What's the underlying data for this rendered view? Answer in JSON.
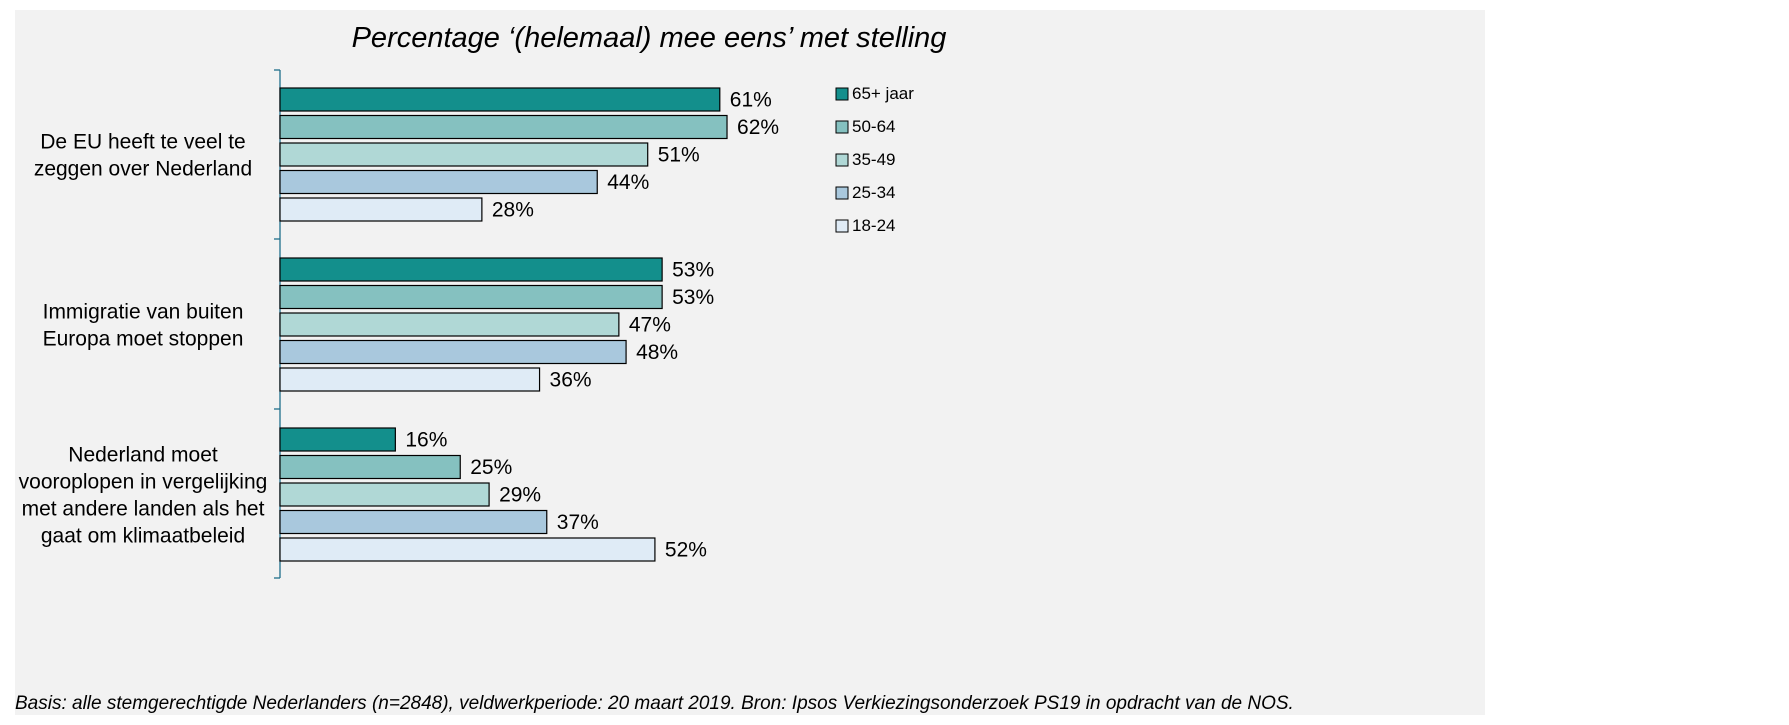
{
  "chart_data": {
    "type": "bar",
    "orientation": "horizontal",
    "title": "Percentage ‘(helemaal) mee eens’ met stelling",
    "categories": [
      [
        "De EU heeft te veel te",
        "zeggen over Nederland"
      ],
      [
        "Immigratie van buiten",
        "Europa moet stoppen"
      ],
      [
        "Nederland moet",
        "vooroplopen in vergelijking",
        "met andere landen als het",
        "gaat om klimaatbeleid"
      ]
    ],
    "series": [
      {
        "name": "65+ jaar",
        "color": "#138f8c",
        "values": [
          61,
          53,
          16
        ]
      },
      {
        "name": "50-64",
        "color": "#85c1c0",
        "values": [
          62,
          53,
          25
        ]
      },
      {
        "name": "35-49",
        "color": "#b0d8d6",
        "values": [
          51,
          47,
          29
        ]
      },
      {
        "name": "25-34",
        "color": "#a9c8dd",
        "values": [
          44,
          48,
          37
        ]
      },
      {
        "name": "18-24",
        "color": "#dfebf6",
        "values": [
          28,
          36,
          52
        ]
      }
    ],
    "value_suffix": "%",
    "xlim": [
      0,
      100
    ],
    "grid": false,
    "legend_position": "top-right",
    "footnote": "Basis: alle stemgerechtigde Nederlanders (n=2848), veldwerkperiode: 20 maart 2019. Bron: Ipsos Verkiezingsonderzoek PS19 in opdracht van de NOS.",
    "axis_color": "#1f6f8b"
  }
}
